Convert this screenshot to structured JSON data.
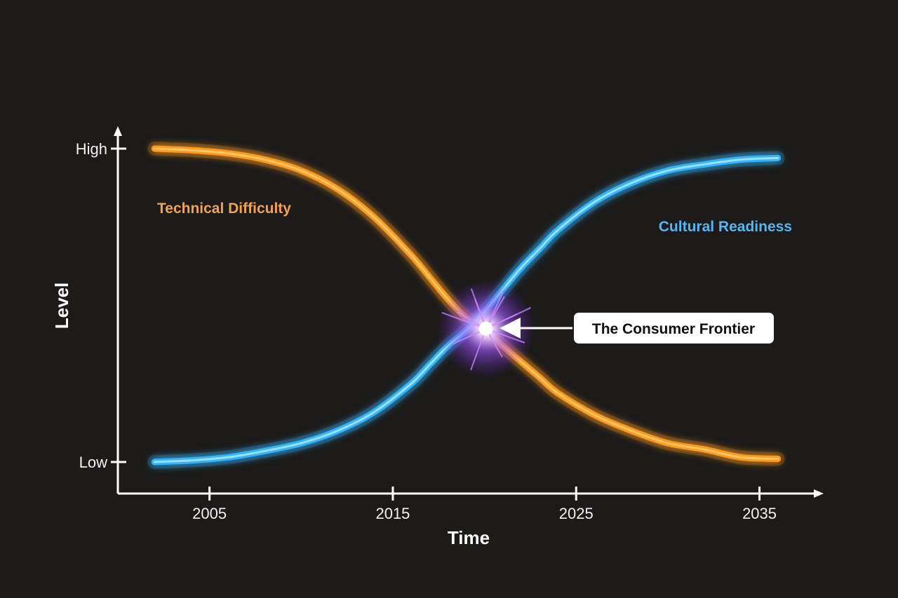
{
  "chart_data": {
    "type": "line",
    "xlabel": "Time",
    "ylabel": "Level",
    "x_ticks": [
      2005,
      2015,
      2025,
      2035
    ],
    "y_ticks": [
      "Low",
      "High"
    ],
    "xlim": [
      2000,
      2038.5
    ],
    "ylim": [
      0,
      1
    ],
    "grid": false,
    "series": [
      {
        "name": "Technical Difficulty",
        "color": "#ff9a1f",
        "x": [
          2002,
          2004,
          2006,
          2008,
          2010,
          2012,
          2014,
          2016,
          2017,
          2018,
          2019,
          2020,
          2021,
          2022,
          2023,
          2024,
          2026,
          2028,
          2030,
          2032,
          2034,
          2036
        ],
        "y": [
          1.0,
          0.995,
          0.985,
          0.965,
          0.93,
          0.87,
          0.78,
          0.66,
          0.59,
          0.52,
          0.46,
          0.42,
          0.37,
          0.32,
          0.27,
          0.22,
          0.15,
          0.1,
          0.06,
          0.04,
          0.015,
          0.01
        ]
      },
      {
        "name": "Cultural Readiness",
        "color": "#33b5ff",
        "x": [
          2002,
          2004,
          2006,
          2008,
          2010,
          2012,
          2014,
          2016,
          2017,
          2018,
          2019,
          2020,
          2021,
          2022,
          2023,
          2024,
          2026,
          2028,
          2030,
          2032,
          2034,
          2036
        ],
        "y": [
          0.0,
          0.005,
          0.015,
          0.035,
          0.06,
          0.1,
          0.16,
          0.25,
          0.31,
          0.37,
          0.42,
          0.48,
          0.55,
          0.62,
          0.68,
          0.74,
          0.83,
          0.89,
          0.93,
          0.95,
          0.965,
          0.97
        ]
      }
    ],
    "annotations": [
      {
        "text": "The Consumer Frontier",
        "x": 2020,
        "y": 0.43,
        "color": "#b56bff"
      }
    ]
  }
}
